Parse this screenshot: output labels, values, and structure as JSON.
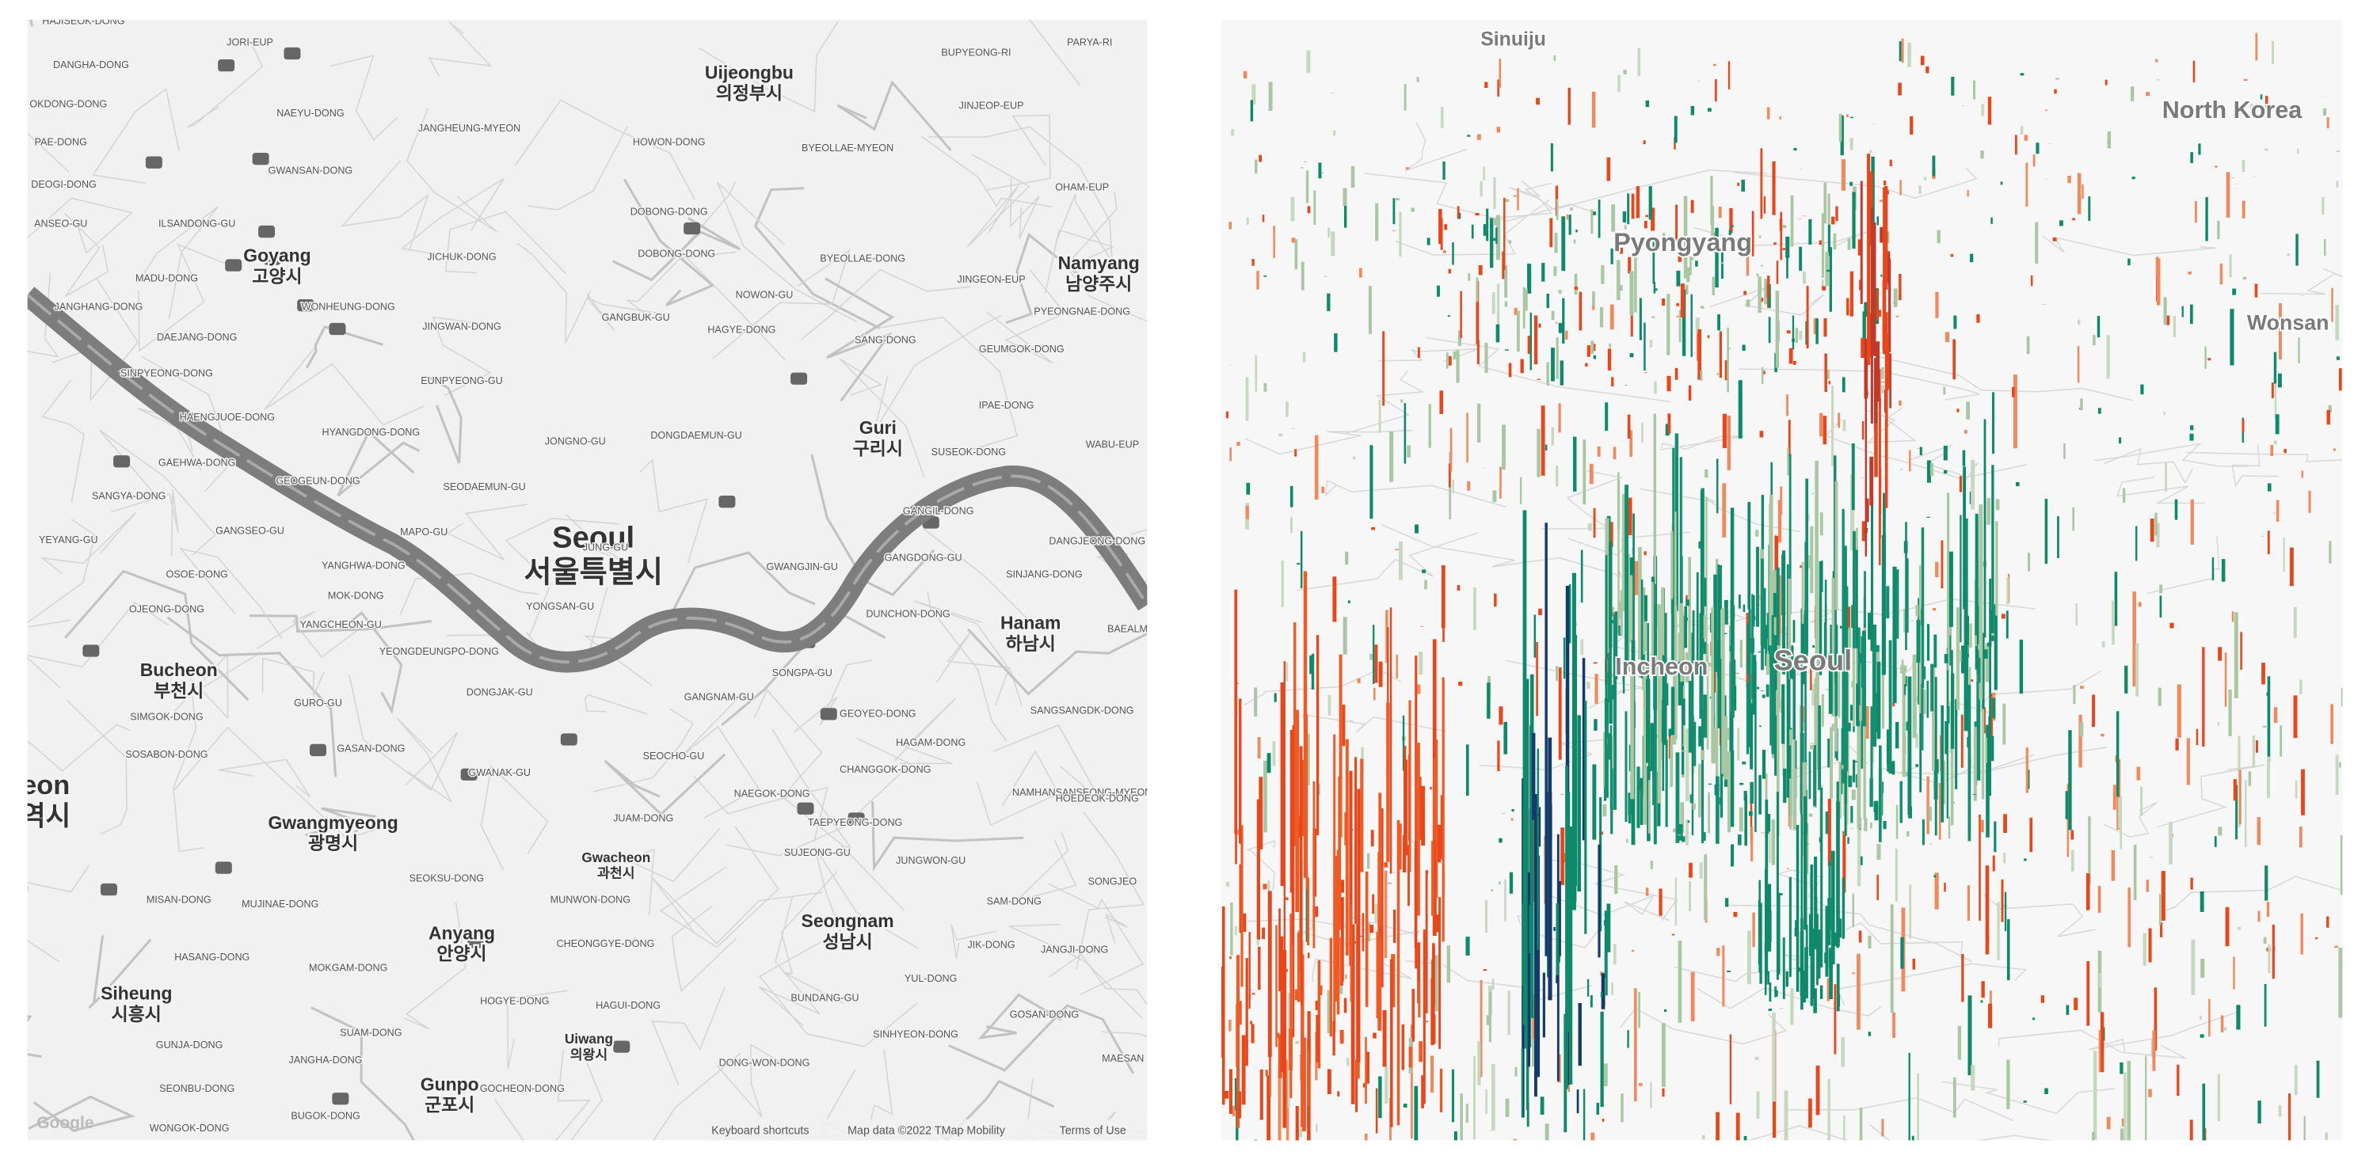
{
  "left_map": {
    "cities": [
      {
        "name": "Uijeongbu",
        "local": "의정부시"
      },
      {
        "name": "Goyang",
        "local": "고양시"
      },
      {
        "name": "Namyang",
        "local": "남양주시"
      },
      {
        "name": "Guri",
        "local": "구리시"
      },
      {
        "name": "Seoul",
        "local": "서울특별시"
      },
      {
        "name": "Bucheon",
        "local": "부천시"
      },
      {
        "name": "Hanam",
        "local": "하남시"
      },
      {
        "name": "Gwangmyeong",
        "local": "광명시"
      },
      {
        "name": "Gwacheon",
        "local": "과천시"
      },
      {
        "name": "Anyang",
        "local": "안양시"
      },
      {
        "name": "Seongnam",
        "local": "성남시"
      },
      {
        "name": "Siheung",
        "local": "시흥시"
      },
      {
        "name": "Uiwang",
        "local": "의왕시"
      },
      {
        "name": "Gunpo",
        "local": "군포시"
      },
      {
        "name": "eon",
        "local": "역시"
      }
    ],
    "districts": [
      "HAJISEOK-DONG",
      "DANGHA-DONG",
      "JORI-EUP",
      "NAEYU-DONG",
      "JANGHEUNG-MYEON",
      "HOWON-DONG",
      "BYEOLLAE-MYEON",
      "BUPYEONG-RI",
      "PARYA-RI",
      "JINJEOP-EUP",
      "OKDONG-DONG",
      "PAE-DONG",
      "DEOGI-DONG",
      "GWANSAN-DONG",
      "DOBONG-DONG",
      "OHAM-EUP",
      "ILSANDONG-GU",
      "ANSEO-GU",
      "MADU-DONG",
      "JICHUK-DONG",
      "DOBONG-DONG",
      "BYEOLLAE-DONG",
      "JINGEON-EUP",
      "JANGHANG-DONG",
      "WONHEUNG-DONG",
      "NOWON-GU",
      "PYEONGNAE-DONG",
      "JINGWAN-DONG",
      "GANGBUK-GU",
      "HAGYE-DONG",
      "SANG-DONG",
      "GEUMGOK-DONG",
      "DAEJANG-DONG",
      "SINPYEONG-DONG",
      "EUNPYEONG-GU",
      "IPAE-DONG",
      "HAENGJUOE-DONG",
      "HYANGDONG-DONG",
      "JONGNO-GU",
      "DONGDAEMUN-GU",
      "SUSEOK-DONG",
      "WABU-EUP",
      "GAEHWA-DONG",
      "GEOGEUN-DONG",
      "SEODAEMUN-GU",
      "SANGYA-DONG",
      "GANGSEO-GU",
      "MAPO-GU",
      "JUNG-GU",
      "GANGIL-DONG",
      "DANGJEONG-DONG",
      "YEYANG-GU",
      "YANGHWA-DONG",
      "GWANGJIN-GU",
      "GANGDONG-GU",
      "SINJANG-DONG",
      "OSOE-DONG",
      "OJEONG-DONG",
      "YONGSAN-GU",
      "DUNCHON-DONG",
      "BAEALM",
      "MOK-DONG",
      "YANGCHEON-GU",
      "YEONGDEUNGPO-DONG",
      "SONGPA-GU",
      "DONGJAK-GU",
      "GANGNAM-GU",
      "GEOYEO-DONG",
      "SANGSANGDK-DONG",
      "GURO-GU",
      "SIMGOK-DONG",
      "HAGAM-DONG",
      "GASAN-DONG",
      "SEOCHO-GU",
      "CHANGGOK-DONG",
      "SOSABON-DONG",
      "GWANAK-GU",
      "NAEGOK-DONG",
      "NAMHANSANSEONG-MYEON",
      "JUAM-DONG",
      "TAEPYEONG-DONG",
      "HOEDEOK-DONG",
      "SUJEONG-GU",
      "JUNGWON-GU",
      "SONGJEO",
      "SEOKSU-DONG",
      "MISAN-DONG",
      "MUJINAE-DONG",
      "MUNWON-DONG",
      "SAM-DONG",
      "CHEONGGYE-DONG",
      "JIK-DONG",
      "JANGJI-DONG",
      "HASANG-DONG",
      "MOKGAM-DONG",
      "YUL-DONG",
      "HOGYE-DONG",
      "HAGUI-DONG",
      "BUNDANG-GU",
      "GOSAN-DONG",
      "SUAM-DONG",
      "SINHYEON-DONG",
      "GUNJA-DONG",
      "JANGHA-DONG",
      "DONG-WON-DONG",
      "SEONBU-DONG",
      "GOCHEON-DONG",
      "BUGOK-DONG",
      "WONGOK-DONG",
      "MAESAN"
    ],
    "attribution": {
      "logo": "Google",
      "shortcuts": "Keyboard shortcuts",
      "data": "Map data ©2022 TMap Mobility",
      "terms": "Terms of Use"
    }
  },
  "right_map": {
    "labels": [
      "Sinuiju",
      "North Korea",
      "Pyongyang",
      "Wonsan",
      "Incheon",
      "Seoul"
    ]
  }
}
